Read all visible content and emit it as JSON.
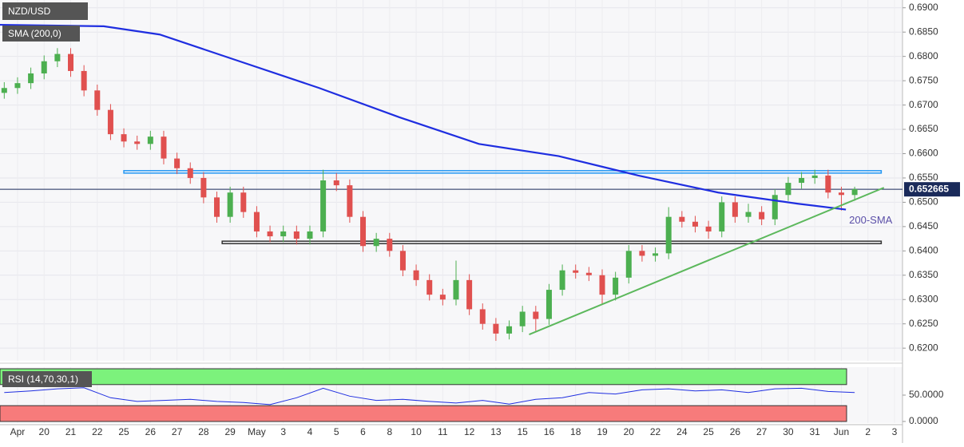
{
  "chart_data": {
    "type": "candlestick",
    "title": "NZD/USD",
    "categories": [
      "Apr",
      "20",
      "21",
      "22",
      "25",
      "26",
      "27",
      "28",
      "29",
      "May",
      "3",
      "4",
      "5",
      "6",
      "8",
      "10",
      "11",
      "12",
      "13",
      "15",
      "16",
      "18",
      "19",
      "20",
      "22",
      "24",
      "25",
      "26",
      "27",
      "30",
      "31",
      "Jun",
      "2",
      "3"
    ],
    "candle_fields": [
      "x",
      "open",
      "high",
      "low",
      "close"
    ],
    "candles": [
      [
        -0.5,
        0.6725,
        0.6747,
        0.6713,
        0.6735
      ],
      [
        0,
        0.6735,
        0.6757,
        0.6723,
        0.6745
      ],
      [
        0.5,
        0.6745,
        0.6777,
        0.6733,
        0.6765
      ],
      [
        1,
        0.6765,
        0.6802,
        0.6753,
        0.679
      ],
      [
        1.5,
        0.679,
        0.6817,
        0.6778,
        0.6805
      ],
      [
        2,
        0.6805,
        0.6817,
        0.6758,
        0.677
      ],
      [
        2.5,
        0.677,
        0.6782,
        0.6718,
        0.673
      ],
      [
        3,
        0.673,
        0.6742,
        0.6678,
        0.669
      ],
      [
        3.5,
        0.669,
        0.6702,
        0.6628,
        0.664
      ],
      [
        4,
        0.664,
        0.6652,
        0.6613,
        0.6625
      ],
      [
        4.5,
        0.6625,
        0.6637,
        0.6608,
        0.662
      ],
      [
        5,
        0.662,
        0.6647,
        0.6608,
        0.6635
      ],
      [
        5.5,
        0.6635,
        0.6647,
        0.6578,
        0.659
      ],
      [
        6,
        0.659,
        0.6602,
        0.6558,
        0.657
      ],
      [
        6.5,
        0.657,
        0.6582,
        0.6538,
        0.655
      ],
      [
        7,
        0.655,
        0.6562,
        0.6498,
        0.651
      ],
      [
        7.5,
        0.651,
        0.6522,
        0.6458,
        0.647
      ],
      [
        8,
        0.647,
        0.6532,
        0.6458,
        0.652
      ],
      [
        8.5,
        0.652,
        0.6532,
        0.6468,
        0.648
      ],
      [
        9,
        0.648,
        0.6492,
        0.6428,
        0.644
      ],
      [
        9.5,
        0.644,
        0.6452,
        0.6418,
        0.643
      ],
      [
        10,
        0.643,
        0.6452,
        0.6418,
        0.644
      ],
      [
        10.5,
        0.644,
        0.6452,
        0.6413,
        0.6425
      ],
      [
        11,
        0.6425,
        0.6452,
        0.6413,
        0.644
      ],
      [
        11.5,
        0.644,
        0.6567,
        0.6428,
        0.6545
      ],
      [
        12,
        0.6545,
        0.656,
        0.6523,
        0.6535
      ],
      [
        12.5,
        0.6535,
        0.6547,
        0.6458,
        0.647
      ],
      [
        13,
        0.647,
        0.6482,
        0.6398,
        0.641
      ],
      [
        13.5,
        0.641,
        0.6437,
        0.6398,
        0.6425
      ],
      [
        14,
        0.6425,
        0.6437,
        0.6388,
        0.64
      ],
      [
        14.5,
        0.64,
        0.6412,
        0.6348,
        0.636
      ],
      [
        15,
        0.636,
        0.6372,
        0.6328,
        0.634
      ],
      [
        15.5,
        0.634,
        0.6352,
        0.6298,
        0.631
      ],
      [
        16,
        0.631,
        0.6322,
        0.6288,
        0.63
      ],
      [
        16.5,
        0.63,
        0.638,
        0.6288,
        0.634
      ],
      [
        17,
        0.634,
        0.6352,
        0.6268,
        0.628
      ],
      [
        17.5,
        0.628,
        0.6292,
        0.6238,
        0.625
      ],
      [
        18,
        0.625,
        0.6262,
        0.6215,
        0.623
      ],
      [
        18.5,
        0.623,
        0.6257,
        0.6218,
        0.6245
      ],
      [
        19,
        0.6245,
        0.6287,
        0.6233,
        0.6275
      ],
      [
        19.5,
        0.6275,
        0.6287,
        0.6235,
        0.626
      ],
      [
        20,
        0.626,
        0.6332,
        0.6248,
        0.632
      ],
      [
        20.5,
        0.632,
        0.6372,
        0.6308,
        0.636
      ],
      [
        21,
        0.636,
        0.6372,
        0.6343,
        0.6355
      ],
      [
        21.5,
        0.6355,
        0.6367,
        0.6338,
        0.635
      ],
      [
        22,
        0.635,
        0.6362,
        0.629,
        0.631
      ],
      [
        22.5,
        0.631,
        0.6357,
        0.6298,
        0.6345
      ],
      [
        23,
        0.6345,
        0.6412,
        0.6333,
        0.64
      ],
      [
        23.5,
        0.64,
        0.6412,
        0.6378,
        0.639
      ],
      [
        24,
        0.639,
        0.6407,
        0.6378,
        0.6395
      ],
      [
        24.5,
        0.6395,
        0.649,
        0.6383,
        0.647
      ],
      [
        25,
        0.647,
        0.6482,
        0.6448,
        0.646
      ],
      [
        25.5,
        0.646,
        0.6472,
        0.6438,
        0.645
      ],
      [
        26,
        0.645,
        0.6462,
        0.6425,
        0.644
      ],
      [
        26.5,
        0.644,
        0.6512,
        0.6428,
        0.65
      ],
      [
        27,
        0.65,
        0.6512,
        0.6458,
        0.647
      ],
      [
        27.5,
        0.647,
        0.6497,
        0.6458,
        0.648
      ],
      [
        28,
        0.648,
        0.6492,
        0.6453,
        0.6465
      ],
      [
        28.5,
        0.6465,
        0.6527,
        0.6453,
        0.6515
      ],
      [
        29,
        0.6515,
        0.6552,
        0.6503,
        0.654
      ],
      [
        29.5,
        0.654,
        0.6562,
        0.6528,
        0.655
      ],
      [
        30,
        0.655,
        0.6567,
        0.6538,
        0.6555
      ],
      [
        30.5,
        0.6555,
        0.6567,
        0.6508,
        0.652
      ],
      [
        31,
        0.652,
        0.6532,
        0.6483,
        0.6515
      ],
      [
        31.5,
        0.6515,
        0.6532,
        0.6503,
        0.6527
      ]
    ],
    "up_color": "#4caf50",
    "down_color": "#e0504f",
    "xlim": [
      -0.66,
      33.3
    ],
    "ylim": [
      0.6174,
      0.6916
    ],
    "yticks": [
      {
        "value": 0.62,
        "label": "0.6200"
      },
      {
        "value": 0.625,
        "label": "0.6250"
      },
      {
        "value": 0.63,
        "label": "0.6300"
      },
      {
        "value": 0.635,
        "label": "0.6350"
      },
      {
        "value": 0.64,
        "label": "0.6400"
      },
      {
        "value": 0.645,
        "label": "0.6450"
      },
      {
        "value": 0.65,
        "label": "0.6500"
      },
      {
        "value": 0.655,
        "label": "0.6550"
      },
      {
        "value": 0.66,
        "label": "0.6600"
      },
      {
        "value": 0.665,
        "label": "0.6650"
      },
      {
        "value": 0.67,
        "label": "0.6700"
      },
      {
        "value": 0.675,
        "label": "0.6750"
      },
      {
        "value": 0.68,
        "label": "0.6800"
      },
      {
        "value": 0.685,
        "label": "0.6850"
      },
      {
        "value": 0.69,
        "label": "0.6900"
      }
    ],
    "grid": true,
    "series": [
      {
        "name": "SMA (200,0)",
        "color": "#1f2ee0",
        "x": [
          -0.66,
          3.24,
          5.35,
          8.35,
          11.35,
          14.36,
          17.36,
          20.36,
          23.36,
          26.37,
          29.37,
          31.17
        ],
        "values": [
          0.6865,
          0.6862,
          0.6845,
          0.679,
          0.6735,
          0.6675,
          0.662,
          0.6595,
          0.6555,
          0.652,
          0.6497,
          0.6485
        ]
      }
    ],
    "sma_annotation": "200-SMA",
    "last_price": {
      "value": 0.652665,
      "label": "0.652665"
    },
    "zones": [
      {
        "color": "#2196f3",
        "x": [
          4,
          32.5
        ],
        "range": [
          0.656,
          0.6565
        ]
      },
      {
        "color": "#333333",
        "x": [
          7.7,
          32.5
        ],
        "range": [
          0.6415,
          0.642
        ]
      }
    ],
    "trendline": {
      "color": "#5cb85c",
      "x": [
        19.25,
        32.6
      ],
      "values": [
        0.6228,
        0.653
      ]
    },
    "rsi": {
      "name": "RSI (14,70,30,1)",
      "color": "#1f2ee0",
      "x": [
        -0.5,
        0.5,
        1.5,
        2.5,
        3.5,
        4.5,
        5.5,
        6.5,
        7.5,
        8.5,
        9.5,
        10.5,
        11.5,
        12.5,
        13.5,
        14.5,
        15.5,
        16.5,
        17.5,
        18.5,
        19.5,
        20.5,
        21.5,
        22.5,
        23.5,
        24.5,
        25.5,
        26.5,
        27.5,
        28.5,
        29.5,
        30.5,
        31.5
      ],
      "values": [
        55,
        58,
        62,
        64,
        45,
        38,
        40,
        42,
        38,
        36,
        32,
        45,
        63,
        48,
        40,
        42,
        38,
        35,
        40,
        33,
        42,
        45,
        55,
        52,
        60,
        62,
        58,
        60,
        55,
        62,
        63,
        57,
        55
      ],
      "ylim": [
        0,
        100
      ],
      "yticks": [
        {
          "value": 0,
          "label": "0.0000"
        },
        {
          "value": 50,
          "label": "50.0000"
        }
      ],
      "overbought": 70,
      "oversold": 30
    }
  }
}
